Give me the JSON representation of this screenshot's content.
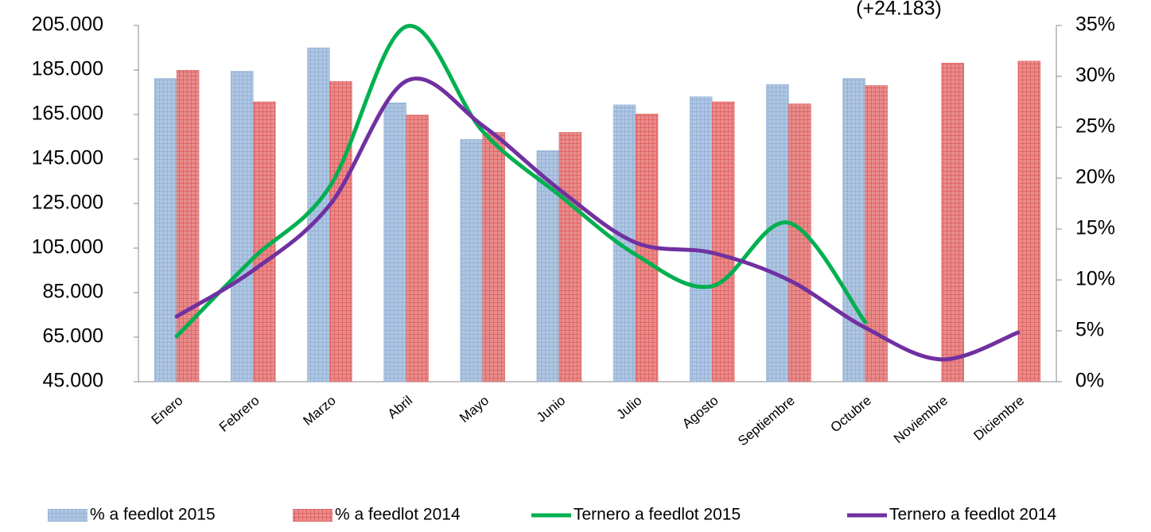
{
  "chart_data": {
    "type": "combo",
    "annotation": "(+24.183)",
    "categories": [
      "Enero",
      "Febrero",
      "Marzo",
      "Abril",
      "Mayo",
      "Junio",
      "Julio",
      "Agosto",
      "Septiembre",
      "Octubre",
      "Noviembre",
      "Diciembre"
    ],
    "series": [
      {
        "name": "% a feedlot 2015",
        "type": "bar",
        "axis": "y2",
        "color": "#95b3d7",
        "values": [
          29.8,
          30.5,
          32.8,
          27.4,
          23.8,
          22.7,
          27.2,
          28.0,
          29.2,
          29.8,
          null,
          null
        ]
      },
      {
        "name": "% a feedlot 2014",
        "type": "bar",
        "axis": "y2",
        "color": "#e06666",
        "values": [
          30.6,
          27.5,
          29.5,
          26.2,
          24.5,
          24.5,
          26.3,
          27.5,
          27.3,
          29.1,
          31.3,
          31.5
        ]
      },
      {
        "name": "Ternero a feedlot 2015",
        "type": "line",
        "axis": "y",
        "color": "#00b050",
        "values": [
          65400,
          100400,
          132500,
          204500,
          157500,
          128900,
          102100,
          87900,
          116400,
          71800,
          null,
          null
        ]
      },
      {
        "name": "Ternero a feedlot 2014",
        "type": "line",
        "axis": "y",
        "color": "#7030a0",
        "values": [
          74300,
          95000,
          124300,
          180000,
          160000,
          131400,
          107500,
          102900,
          90700,
          69300,
          55000,
          67100
        ]
      }
    ],
    "ylim": [
      45000,
      205000
    ],
    "yticks": [
      {
        "value": 45000,
        "label": "45.000"
      },
      {
        "value": 65000,
        "label": "65.000"
      },
      {
        "value": 85000,
        "label": "85.000"
      },
      {
        "value": 105000,
        "label": "105.000"
      },
      {
        "value": 125000,
        "label": "125.000"
      },
      {
        "value": 145000,
        "label": "145.000"
      },
      {
        "value": 165000,
        "label": "165.000"
      },
      {
        "value": 185000,
        "label": "185.000"
      },
      {
        "value": 205000,
        "label": "205.000"
      }
    ],
    "y2lim": [
      0,
      35
    ],
    "y2ticks": [
      {
        "value": 0,
        "label": "0%"
      },
      {
        "value": 5,
        "label": "5%"
      },
      {
        "value": 10,
        "label": "10%"
      },
      {
        "value": 15,
        "label": "15%"
      },
      {
        "value": 20,
        "label": "20%"
      },
      {
        "value": 25,
        "label": "25%"
      },
      {
        "value": 30,
        "label": "30%"
      },
      {
        "value": 35,
        "label": "35%"
      }
    ],
    "legend": "bottom"
  }
}
